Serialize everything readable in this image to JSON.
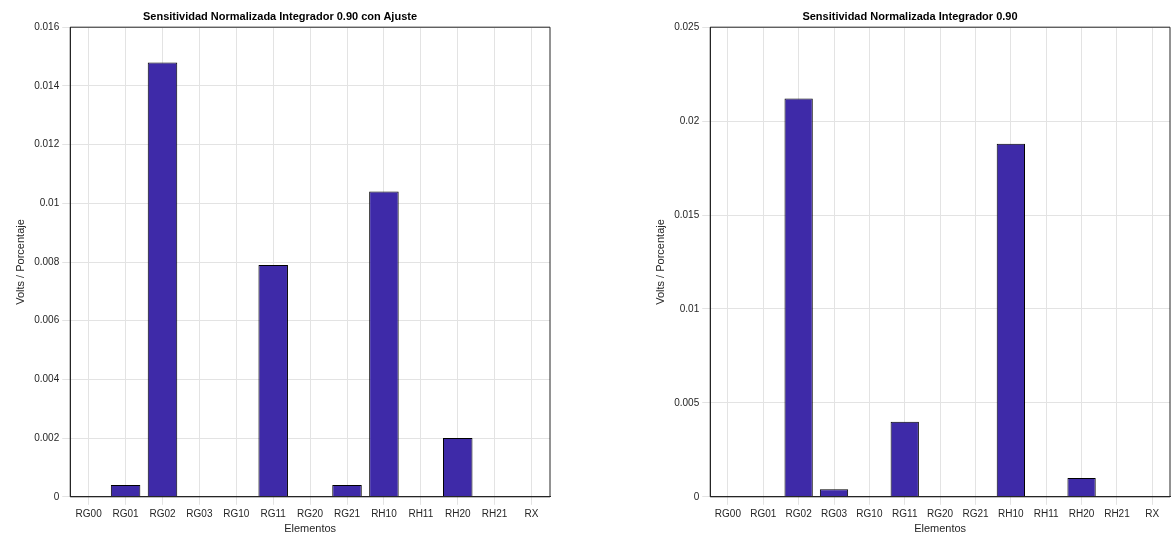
{
  "chart_data": [
    {
      "type": "bar",
      "title": "Sensitividad Normalizada Integrador 0.90 con Ajuste",
      "xlabel": "Elementos",
      "ylabel": "Volts / Porcentaje",
      "categories": [
        "RG00",
        "RG01",
        "RG02",
        "RG03",
        "RG10",
        "RG11",
        "RG20",
        "RG21",
        "RH10",
        "RH11",
        "RH20",
        "RH21",
        "RX"
      ],
      "values": [
        0,
        0.0004,
        0.0148,
        0,
        0,
        0.0079,
        0,
        0.0004,
        0.0104,
        0,
        0.002,
        0,
        0
      ],
      "color": "#3e2aa8",
      "ylim": [
        0,
        0.016
      ],
      "yticks": [
        0,
        0.002,
        0.004,
        0.006,
        0.008,
        0.01,
        0.012,
        0.014,
        0.016
      ],
      "grid": true
    },
    {
      "type": "bar",
      "title": "Sensitividad Normalizada Integrador 0.90",
      "xlabel": "Elementos",
      "ylabel": "Volts / Porcentaje",
      "categories": [
        "RG00",
        "RG01",
        "RG02",
        "RG03",
        "RG10",
        "RG11",
        "RG20",
        "RG21",
        "RH10",
        "RH11",
        "RH20",
        "RH21",
        "RX"
      ],
      "values": [
        0,
        0,
        0.0212,
        0.0004,
        0,
        0.004,
        0,
        0,
        0.0188,
        0,
        0.001,
        0,
        0
      ],
      "color": "#3e2aa8",
      "ylim": [
        0,
        0.025
      ],
      "yticks": [
        0,
        0.005,
        0.01,
        0.015,
        0.02,
        0.025
      ],
      "grid": true
    }
  ]
}
